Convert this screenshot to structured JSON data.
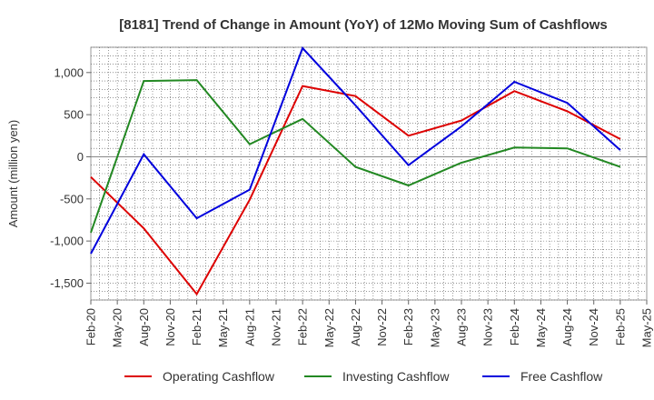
{
  "chart_data": {
    "type": "line",
    "title": "[8181]  Trend of Change in Amount (YoY) of 12Mo Moving Sum of Cashflows",
    "xlabel": "",
    "ylabel": "Amount (million yen)",
    "ylim": [
      -1700,
      1300
    ],
    "yticks": [
      -1500,
      -1000,
      -500,
      0,
      500,
      1000
    ],
    "ytick_labels": [
      "-1,500",
      "-1,000",
      "-500",
      "0",
      "500",
      "1,000"
    ],
    "categories": [
      "Feb-20",
      "May-20",
      "Aug-20",
      "Nov-20",
      "Feb-21",
      "May-21",
      "Aug-21",
      "Nov-21",
      "Feb-22",
      "May-22",
      "Aug-22",
      "Nov-22",
      "Feb-23",
      "May-23",
      "Aug-23",
      "Nov-23",
      "Feb-24",
      "May-24",
      "Aug-24",
      "Nov-24",
      "Feb-25",
      "May-25"
    ],
    "grid": true,
    "legend_position": "bottom",
    "series": [
      {
        "name": "Operating Cashflow",
        "color": "#dd0000",
        "x": [
          "Feb-20",
          "Aug-20",
          "Feb-21",
          "Aug-21",
          "Feb-22",
          "Aug-22",
          "Feb-23",
          "Aug-23",
          "Feb-24",
          "Aug-24",
          "Feb-25"
        ],
        "values": [
          -240,
          -850,
          -1630,
          -510,
          840,
          720,
          250,
          430,
          780,
          540,
          210
        ]
      },
      {
        "name": "Investing Cashflow",
        "color": "#228822",
        "x": [
          "Feb-20",
          "Aug-20",
          "Feb-21",
          "Aug-21",
          "Feb-22",
          "Aug-22",
          "Feb-23",
          "Aug-23",
          "Feb-24",
          "Aug-24",
          "Feb-25"
        ],
        "values": [
          -900,
          900,
          910,
          150,
          450,
          -120,
          -340,
          -70,
          110,
          100,
          -120
        ]
      },
      {
        "name": "Free Cashflow",
        "color": "#0000dd",
        "x": [
          "Feb-20",
          "Aug-20",
          "Feb-21",
          "Aug-21",
          "Feb-22",
          "Aug-22",
          "Feb-23",
          "Aug-23",
          "Feb-24",
          "Aug-24",
          "Feb-25"
        ],
        "values": [
          -1150,
          30,
          -730,
          -390,
          1290,
          610,
          -100,
          360,
          890,
          640,
          80
        ]
      }
    ]
  }
}
